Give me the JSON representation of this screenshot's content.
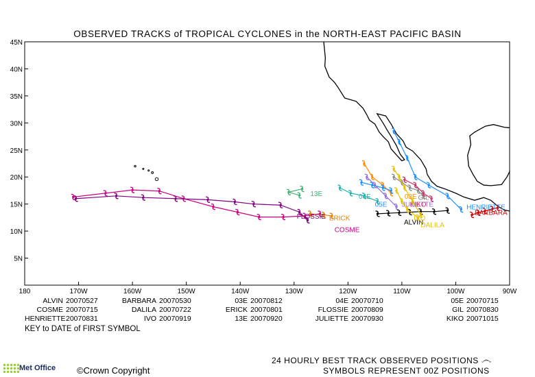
{
  "title": "OBSERVED TRACKS of TROPICAL CYCLONES in the NORTH-EAST PACIFIC BASIN",
  "lat_ticks": [
    "45N",
    "40N",
    "35N",
    "30N",
    "25N",
    "20N",
    "15N",
    "10N",
    "5N"
  ],
  "lon_ticks": [
    "180",
    "170W",
    "160W",
    "150W",
    "140W",
    "130W",
    "120W",
    "110W",
    "100W",
    "90W"
  ],
  "map_extent": {
    "lon_min": 180,
    "lon_max": 270,
    "lat_min": 0,
    "lat_max": 45
  },
  "storms": [
    {
      "name": "ALVIN",
      "date": "20070527",
      "color": "#000000",
      "label": "ALVIN",
      "label_pos": [
        -109.6,
        11.2
      ],
      "track": [
        [
          -101.5,
          13.8
        ],
        [
          -104,
          13.6
        ],
        [
          -106.5,
          13.6
        ],
        [
          -108.5,
          13.5
        ],
        [
          -110.5,
          13.4
        ],
        [
          -112.5,
          13.3
        ],
        [
          -114.5,
          13.2
        ]
      ]
    },
    {
      "name": "BARBARA",
      "date": "20070530",
      "color": "#cc0000",
      "label": "BARBARA",
      "label_pos": [
        -96.5,
        13.0
      ],
      "track": [
        [
          -97.0,
          13.0
        ],
        [
          -95.8,
          13.4
        ],
        [
          -94.6,
          13.7
        ],
        [
          -93.2,
          14.1
        ],
        [
          -92.2,
          14.3
        ]
      ]
    },
    {
      "name": "COSME",
      "date": "20070715",
      "color": "#cc0080",
      "label": "COSME",
      "label_pos": [
        -122.5,
        9.8
      ],
      "track": [
        [
          -125.2,
          13.2
        ],
        [
          -128.0,
          12.8
        ],
        [
          -132.0,
          12.6
        ],
        [
          -136.5,
          12.6
        ],
        [
          -140.5,
          13.5
        ],
        [
          -145.0,
          14.5
        ],
        [
          -150.5,
          16.0
        ],
        [
          -155.0,
          17.4
        ],
        [
          -160.0,
          17.6
        ],
        [
          -165.0,
          17.0
        ],
        [
          -171.0,
          16.3
        ]
      ]
    },
    {
      "name": "DALILA",
      "date": "20070722",
      "color": "#e6c200",
      "label": "DALILA",
      "label_pos": [
        -106.5,
        10.7
      ],
      "track": [
        [
          -111.0,
          17.5
        ],
        [
          -110.0,
          15.5
        ],
        [
          -109.0,
          14.0
        ],
        [
          -107.0,
          12.5
        ]
      ]
    },
    {
      "name": "ERICK",
      "date": "20070801",
      "color": "#e08000",
      "label": "ERICK",
      "label_pos": [
        -123.5,
        12.0
      ],
      "track": [
        [
          -127.0,
          13.2
        ],
        [
          -124.5,
          13.0
        ],
        [
          -123.0,
          12.8
        ]
      ]
    },
    {
      "name": "FLOSSIE",
      "date": "20070809",
      "color": "#800080",
      "label": "FLOSSIE",
      "label_pos": [
        -129.5,
        12.3
      ],
      "track": [
        [
          -127.5,
          12.0
        ],
        [
          -129.0,
          13.5
        ],
        [
          -132.5,
          14.8
        ],
        [
          -137.5,
          15.0
        ],
        [
          -141.0,
          15.4
        ],
        [
          -146.0,
          15.8
        ],
        [
          -152.0,
          16.0
        ],
        [
          -158.0,
          16.2
        ],
        [
          -163.0,
          16.5
        ],
        [
          -170.5,
          16.0
        ]
      ]
    },
    {
      "name": "GIL",
      "date": "20070830",
      "color": "#888888",
      "label": "GIL",
      "label_pos": [
        -107.0,
        15.8
      ],
      "track": [
        [
          -111.5,
          20.0
        ],
        [
          -110.0,
          19.0
        ],
        [
          -108.5,
          18.0
        ],
        [
          -107.0,
          17.5
        ],
        [
          -106.0,
          16.5
        ]
      ]
    },
    {
      "name": "HENRIETTE",
      "date": "20070831",
      "color": "#1e90ff",
      "label": "HENRIETTE",
      "label_pos": [
        -98.0,
        14.0
      ],
      "track": [
        [
          -99.0,
          14.0
        ],
        [
          -101.5,
          16.5
        ],
        [
          -105.0,
          18.5
        ],
        [
          -107.5,
          20.0
        ],
        [
          -109.0,
          23.5
        ],
        [
          -110.5,
          26.5
        ],
        [
          -111.5,
          28.5
        ]
      ]
    },
    {
      "name": "IVO",
      "date": "20070919",
      "color": "#e6c200",
      "label": "IVO",
      "label_pos": [
        -107.8,
        12.0
      ],
      "track": [
        [
          -106.5,
          13.0
        ],
        [
          -108.0,
          15.5
        ],
        [
          -109.5,
          18.0
        ],
        [
          -110.5,
          20.0
        ],
        [
          -111.5,
          21.5
        ]
      ]
    },
    {
      "name": "JULIETTE",
      "date": "20070930",
      "color": "#9370db",
      "label": "JULIETTE",
      "label_pos": [
        -110.0,
        14.5
      ],
      "track": [
        [
          -111.0,
          14.5
        ],
        [
          -113.0,
          16.5
        ],
        [
          -115.0,
          18.5
        ],
        [
          -116.5,
          20.0
        ]
      ]
    },
    {
      "name": "KIKO",
      "date": "20071015",
      "color": "#cc3366",
      "label": "KIKO",
      "label_pos": [
        -108.5,
        14.5
      ],
      "track": [
        [
          -104.5,
          16.0
        ],
        [
          -106.0,
          17.0
        ],
        [
          -107.5,
          18.5
        ],
        [
          -109.5,
          19.5
        ]
      ]
    },
    {
      "name": "03E",
      "date": "20070812",
      "color": "#ff8c00",
      "label": "03E",
      "label_pos": [
        -109.5,
        16.0
      ],
      "track": [
        [
          -112.0,
          17.0
        ],
        [
          -113.5,
          18.5
        ],
        [
          -115.5,
          20.0
        ],
        [
          -117.0,
          22.5
        ]
      ]
    },
    {
      "name": "04E",
      "date": "20070710",
      "color": "#20b2aa",
      "label": "04E",
      "label_pos": [
        -118.0,
        16.0
      ],
      "track": [
        [
          -114.5,
          15.5
        ],
        [
          -117.0,
          16.5
        ],
        [
          -119.5,
          17.0
        ],
        [
          -121.5,
          18.0
        ]
      ]
    },
    {
      "name": "05E",
      "date": "20070715",
      "color": "#1e90ff",
      "label": "05E",
      "label_pos": [
        -115.0,
        14.5
      ],
      "track": [
        [
          -112.0,
          17.5
        ],
        [
          -113.5,
          18.0
        ],
        [
          -115.5,
          18.5
        ],
        [
          -117.5,
          19.0
        ]
      ]
    },
    {
      "name": "13E",
      "date": "20070920",
      "color": "#3cb371",
      "label": "13E",
      "label_pos": [
        -127.0,
        16.5
      ],
      "track": [
        [
          -128.5,
          17.8
        ],
        [
          -131.0,
          17.2
        ],
        [
          -129.0,
          16.6
        ]
      ]
    }
  ],
  "key_rows": [
    [
      {
        "name": "ALVIN",
        "date": "20070527"
      },
      {
        "name": "BARBARA",
        "date": "20070530"
      },
      {
        "name": "03E",
        "date": "20070812"
      },
      {
        "name": "04E",
        "date": "20070710"
      },
      {
        "name": "05E",
        "date": "20070715"
      }
    ],
    [
      {
        "name": "COSME",
        "date": "20070715"
      },
      {
        "name": "DALILA",
        "date": "20070722"
      },
      {
        "name": "ERICK",
        "date": "20070801"
      },
      {
        "name": "FLOSSIE",
        "date": "20070809"
      },
      {
        "name": "GIL",
        "date": "20070830"
      }
    ],
    [
      {
        "name": "HENRIETTE",
        "date": "20070831"
      },
      {
        "name": "IVO",
        "date": "20070919"
      },
      {
        "name": "13E",
        "date": "20070920"
      },
      {
        "name": "JULIETTE",
        "date": "20070930"
      },
      {
        "name": "KIKO",
        "date": "20071015"
      }
    ]
  ],
  "key_caption": "KEY to DATE of FIRST SYMBOL",
  "footer_line1": "24 HOURLY BEST TRACK OBSERVED POSITIONS",
  "footer_line2": "SYMBOLS REPRESENT 00Z POSITIONS",
  "copyright": "©Crown Copyright",
  "logo_text": "Met Office"
}
